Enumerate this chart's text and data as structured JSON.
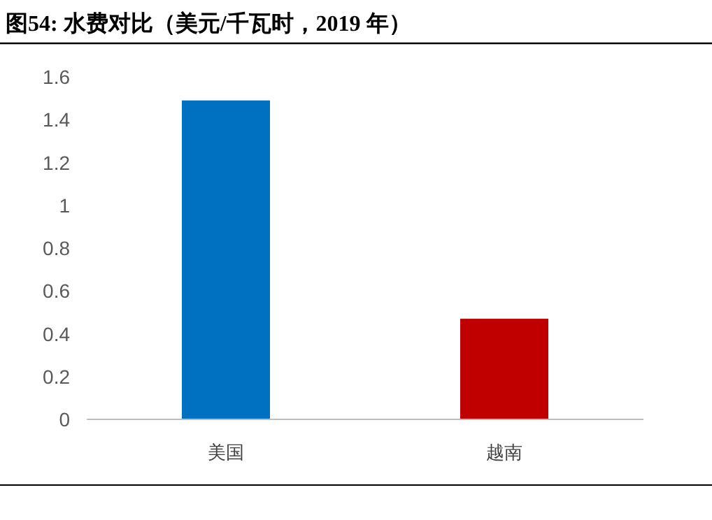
{
  "chart_data": {
    "type": "bar",
    "title": "图54:  水费对比（美元/千瓦时，2019 年）",
    "categories": [
      "美国",
      "越南"
    ],
    "values": [
      1.49,
      0.47
    ],
    "colors": [
      "#0070c0",
      "#c00000"
    ],
    "ylim": [
      0,
      1.6
    ],
    "yticks": [
      0,
      0.2,
      0.4,
      0.6,
      0.8,
      1,
      1.2,
      1.4,
      1.6
    ],
    "grid": false
  }
}
